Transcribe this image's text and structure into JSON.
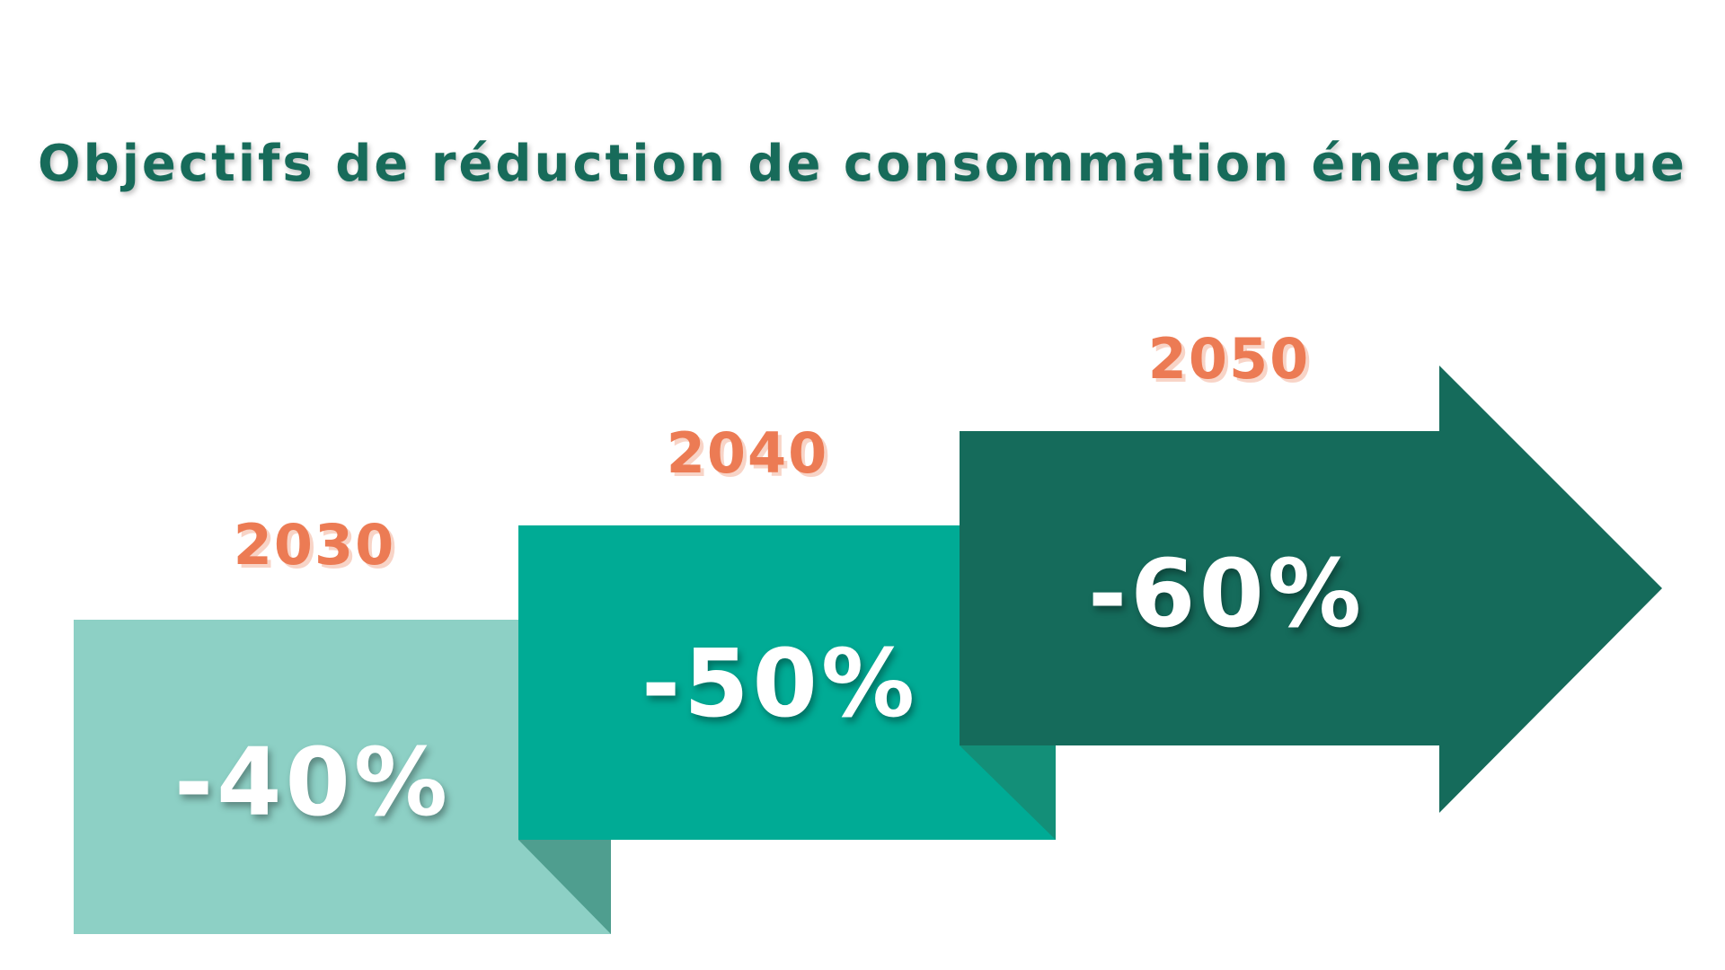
{
  "title": "Objectifs de réduction de consommation énergétique",
  "colors": {
    "title": "#176b5a",
    "year": "#ec7b54",
    "step_1": "#8dd0c5",
    "step_1_fold": "#4f9e8f",
    "step_2": "#00ab95",
    "step_2_fold": "#138f78",
    "step_3": "#156b5b",
    "text": "#ffffff"
  },
  "steps": [
    {
      "year": "2030",
      "value": "-40%"
    },
    {
      "year": "2040",
      "value": "-50%"
    },
    {
      "year": "2050",
      "value": "-60%"
    }
  ]
}
